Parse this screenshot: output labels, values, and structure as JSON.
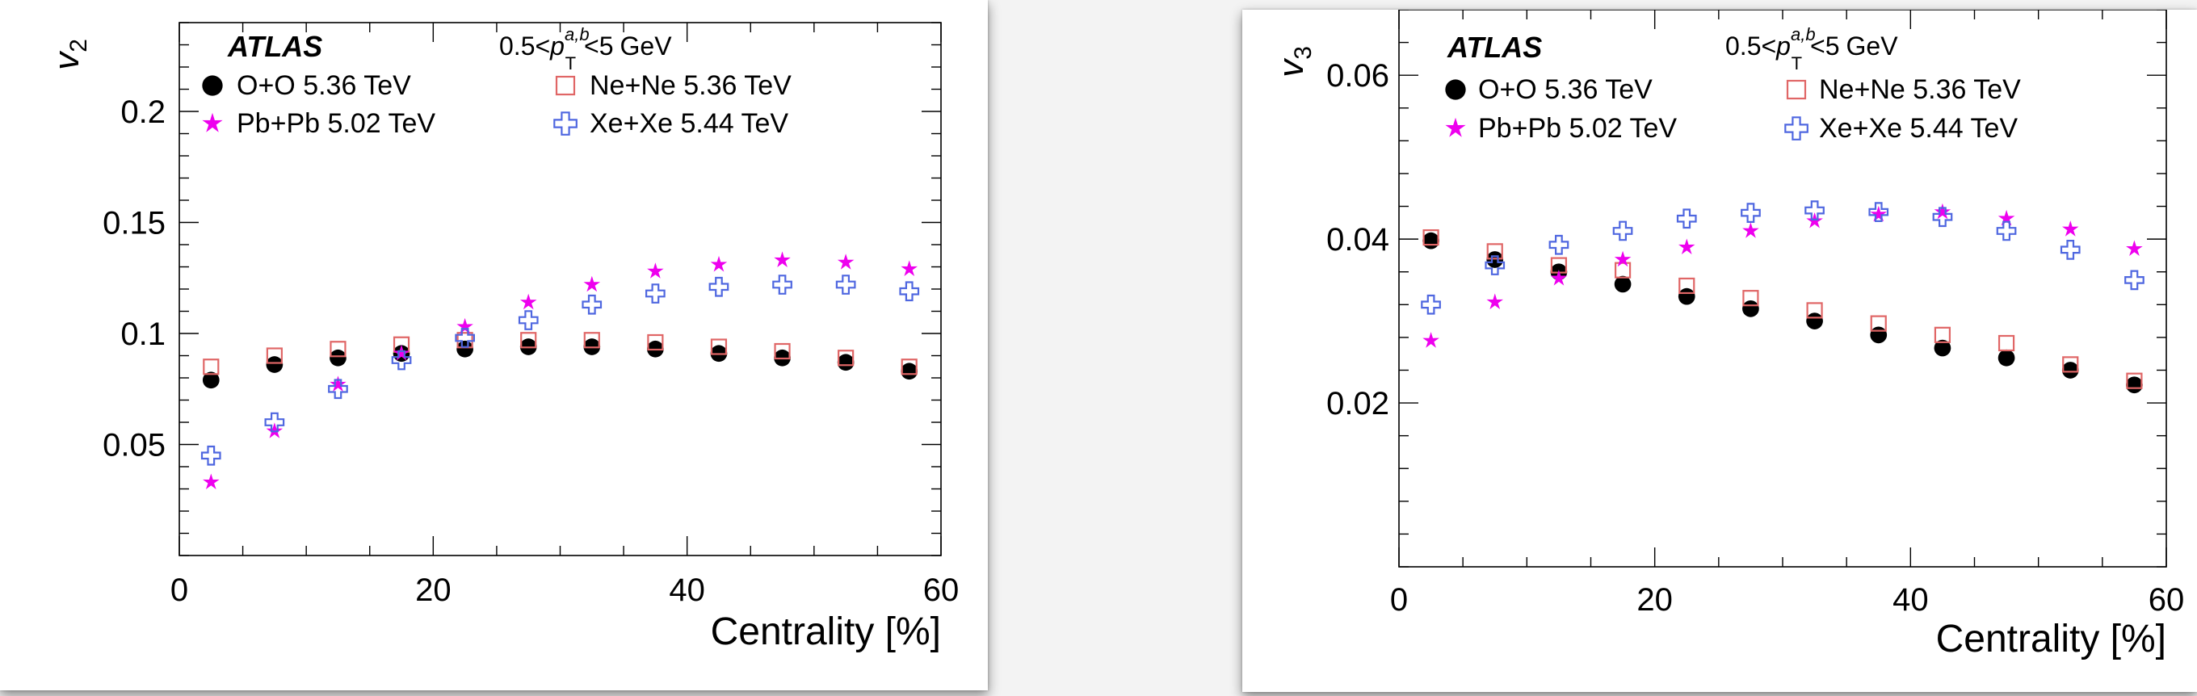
{
  "colors": {
    "oo": "#000000",
    "nene": "#e06666",
    "pbpb": "#ee00ee",
    "xexe": "#4f67e0",
    "axis": "#000000"
  },
  "chart_data": [
    {
      "type": "scatter",
      "id": "v2",
      "experiment": "ATLAS",
      "pt_range": {
        "low": "0.5",
        "high": "5",
        "unit": "GeV",
        "symbol": "p",
        "sub": "T",
        "sup": "a,b"
      },
      "ylabel": {
        "main": "v",
        "sub": "2"
      },
      "xlabel": "Centrality [%]",
      "xlim": [
        0,
        60
      ],
      "ylim": [
        0,
        0.24
      ],
      "xticks": [
        0,
        20,
        40,
        60
      ],
      "xtick_labels": [
        "0",
        "20",
        "40",
        "60"
      ],
      "yticks": [
        0.05,
        0.1,
        0.15,
        0.2
      ],
      "ytick_labels": [
        "0.05",
        "0.1",
        "0.15",
        "0.2"
      ],
      "legend": [
        "O+O  5.36 TeV",
        "Ne+Ne  5.36 TeV",
        "Pb+Pb  5.02 TeV",
        "Xe+Xe  5.44 TeV"
      ],
      "x": [
        2.5,
        7.5,
        12.5,
        17.5,
        22.5,
        27.5,
        32.5,
        37.5,
        42.5,
        47.5,
        52.5,
        57.5
      ],
      "series": [
        {
          "name": "O+O  5.36 TeV",
          "marker": "circle",
          "values": [
            0.079,
            0.086,
            0.089,
            0.091,
            0.093,
            0.094,
            0.094,
            0.093,
            0.091,
            0.089,
            0.087,
            0.083
          ]
        },
        {
          "name": "Ne+Ne  5.36 TeV",
          "marker": "square",
          "values": [
            0.085,
            0.09,
            0.093,
            0.095,
            0.097,
            0.097,
            0.097,
            0.096,
            0.094,
            0.092,
            0.089,
            0.085
          ]
        },
        {
          "name": "Pb+Pb  5.02 TeV",
          "marker": "star",
          "values": [
            0.033,
            0.056,
            0.077,
            0.091,
            0.103,
            0.114,
            0.122,
            0.128,
            0.131,
            0.133,
            0.132,
            0.129
          ]
        },
        {
          "name": "Xe+Xe  5.44 TeV",
          "marker": "cross",
          "values": [
            0.045,
            0.06,
            0.075,
            0.088,
            0.098,
            0.106,
            0.113,
            0.118,
            0.121,
            0.122,
            0.122,
            0.119
          ]
        }
      ]
    },
    {
      "type": "scatter",
      "id": "v3",
      "experiment": "ATLAS",
      "pt_range": {
        "low": "0.5",
        "high": "5",
        "unit": "GeV",
        "symbol": "p",
        "sub": "T",
        "sup": "a,b"
      },
      "ylabel": {
        "main": "v",
        "sub": "3"
      },
      "xlabel": "Centrality [%]",
      "xlim": [
        0,
        60
      ],
      "ylim": [
        0,
        0.068
      ],
      "xticks": [
        0,
        20,
        40,
        60
      ],
      "xtick_labels": [
        "0",
        "20",
        "40",
        "60"
      ],
      "yticks": [
        0.02,
        0.04,
        0.06
      ],
      "ytick_labels": [
        "0.02",
        "0.04",
        "0.06"
      ],
      "legend": [
        "O+O  5.36 TeV",
        "Ne+Ne  5.36 TeV",
        "Pb+Pb  5.02 TeV",
        "Xe+Xe  5.44 TeV"
      ],
      "x": [
        2.5,
        7.5,
        12.5,
        17.5,
        22.5,
        27.5,
        32.5,
        37.5,
        42.5,
        47.5,
        52.5,
        57.5
      ],
      "series": [
        {
          "name": "O+O  5.36 TeV",
          "marker": "circle",
          "values": [
            0.0398,
            0.0375,
            0.036,
            0.0345,
            0.033,
            0.0315,
            0.03,
            0.0283,
            0.0267,
            0.0255,
            0.024,
            0.0222
          ]
        },
        {
          "name": "Ne+Ne  5.36 TeV",
          "marker": "square",
          "values": [
            0.0402,
            0.0385,
            0.0368,
            0.0362,
            0.0343,
            0.0328,
            0.0313,
            0.0297,
            0.0283,
            0.0273,
            0.0247,
            0.0227
          ]
        },
        {
          "name": "Pb+Pb  5.02 TeV",
          "marker": "star",
          "values": [
            0.0276,
            0.0323,
            0.0352,
            0.0375,
            0.039,
            0.041,
            0.0422,
            0.043,
            0.0433,
            0.0425,
            0.0412,
            0.0388
          ]
        },
        {
          "name": "Xe+Xe  5.44 TeV",
          "marker": "cross",
          "values": [
            0.032,
            0.0368,
            0.0393,
            0.041,
            0.0425,
            0.0432,
            0.0435,
            0.0433,
            0.0427,
            0.041,
            0.0387,
            0.035
          ]
        }
      ]
    }
  ]
}
